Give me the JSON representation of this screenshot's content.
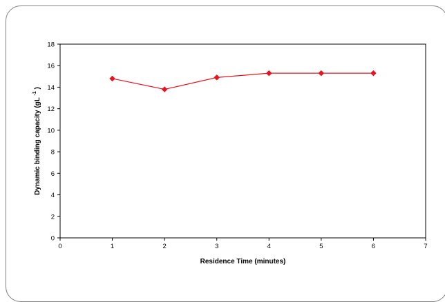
{
  "chart_data": {
    "type": "line",
    "xlabel": "Residence Time (minutes)",
    "ylabel": "Dynamic binding capacity (gL",
    "ylabel_superscript": "-1",
    "ylabel_close": ")",
    "xlim": [
      0,
      7
    ],
    "ylim": [
      0,
      18
    ],
    "x_ticks": [
      "0",
      "1",
      "2",
      "3",
      "4",
      "5",
      "6",
      "7"
    ],
    "y_ticks": [
      "0",
      "2",
      "4",
      "6",
      "8",
      "10",
      "12",
      "14",
      "16",
      "18"
    ],
    "grid": false,
    "legend": "none",
    "series": [
      {
        "x": [
          1,
          2,
          3,
          4,
          5,
          6
        ],
        "values": [
          14.8,
          13.8,
          14.9,
          15.3,
          15.3,
          15.3
        ],
        "color": "#e8131e",
        "marker": "diamond"
      }
    ]
  }
}
